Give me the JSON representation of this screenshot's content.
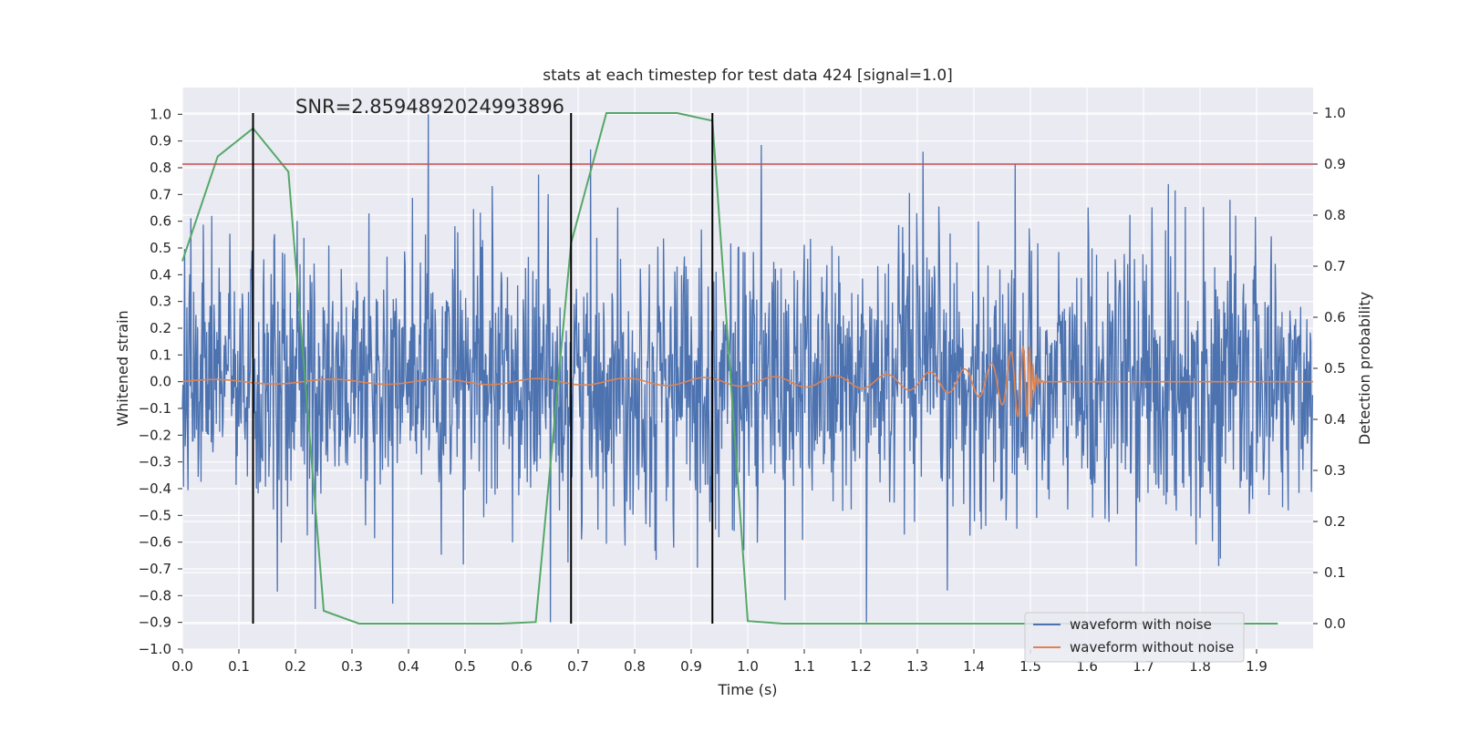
{
  "chart_data": {
    "type": "line",
    "title": "stats at each timestep for test data 424 [signal=1.0]",
    "xlabel": "Time (s)",
    "ylabel_left": "Whitened strain",
    "ylabel_right": "Detection probability",
    "annotation": "SNR=2.8594892024993896",
    "xlim": [
      0.0,
      2.0
    ],
    "ylim_left": [
      -1.0,
      1.1
    ],
    "ylim_right": [
      -0.05,
      1.05
    ],
    "x_ticks": [
      "0.0",
      "0.1",
      "0.2",
      "0.3",
      "0.4",
      "0.5",
      "0.6",
      "0.7",
      "0.8",
      "0.9",
      "1.0",
      "1.1",
      "1.2",
      "1.3",
      "1.4",
      "1.5",
      "1.6",
      "1.7",
      "1.8",
      "1.9"
    ],
    "y_ticks_left": [
      "1.0",
      "0.9",
      "0.8",
      "0.7",
      "0.6",
      "0.5",
      "0.4",
      "0.3",
      "0.2",
      "0.1",
      "0.0",
      "-0.1",
      "-0.2",
      "-0.3",
      "-0.4",
      "-0.5",
      "-0.6",
      "-0.7",
      "-0.8",
      "-0.9",
      "-1.0"
    ],
    "y_ticks_right": [
      "1.0",
      "0.9",
      "0.8",
      "0.7",
      "0.6",
      "0.5",
      "0.4",
      "0.3",
      "0.2",
      "0.1",
      "0.0"
    ],
    "legend": {
      "placement": "lower-right",
      "entries": [
        "waveform with noise",
        "waveform without noise"
      ]
    },
    "colors": {
      "noise": "#4c72b0",
      "clean": "#dd8452",
      "probability": "#55a868",
      "threshold": "#c44e52",
      "markers": "#000000",
      "plot_bg": "#eaeaf2",
      "grid": "#ffffff"
    },
    "threshold_probability": 0.9,
    "event_markers": {
      "times": [
        0.125,
        0.6875,
        0.9375
      ],
      "range_probability": [
        0.0,
        1.0
      ]
    },
    "noise_series": {
      "name": "waveform with noise",
      "sample_rate": 1000,
      "sigma": 0.26,
      "spikes": [
        [
          0.435,
          1.0
        ],
        [
          1.31,
          0.86
        ],
        [
          1.21,
          -0.9
        ],
        [
          0.372,
          -0.83
        ],
        [
          0.235,
          -0.85
        ]
      ]
    },
    "clean_series": {
      "name": "waveform without noise",
      "merger_time": 1.5,
      "base_amplitude": 0.008,
      "peak_amplitude": 0.13,
      "base_frequency": 4.5
    },
    "probability_series": {
      "name": "Detection probability",
      "x": [
        0.0,
        0.0625,
        0.125,
        0.1875,
        0.25,
        0.3125,
        0.375,
        0.4375,
        0.5,
        0.5625,
        0.625,
        0.6875,
        0.75,
        0.8125,
        0.875,
        0.9375,
        1.0,
        1.0625,
        1.125,
        1.1875,
        1.25,
        1.3125,
        1.375,
        1.4375,
        1.5,
        1.5625,
        1.625,
        1.6875,
        1.75,
        1.8125,
        1.875,
        1.9375
      ],
      "y": [
        0.71,
        0.915,
        0.97,
        0.885,
        0.025,
        0.0,
        0.0,
        0.0,
        0.0,
        0.0,
        0.003,
        0.745,
        1.0,
        1.0,
        1.0,
        0.985,
        0.005,
        0.0,
        0.0,
        0.0,
        0.0,
        0.0,
        0.0,
        0.0,
        0.0,
        0.0,
        0.0,
        0.0,
        0.0,
        0.0,
        0.0,
        0.0
      ]
    }
  }
}
